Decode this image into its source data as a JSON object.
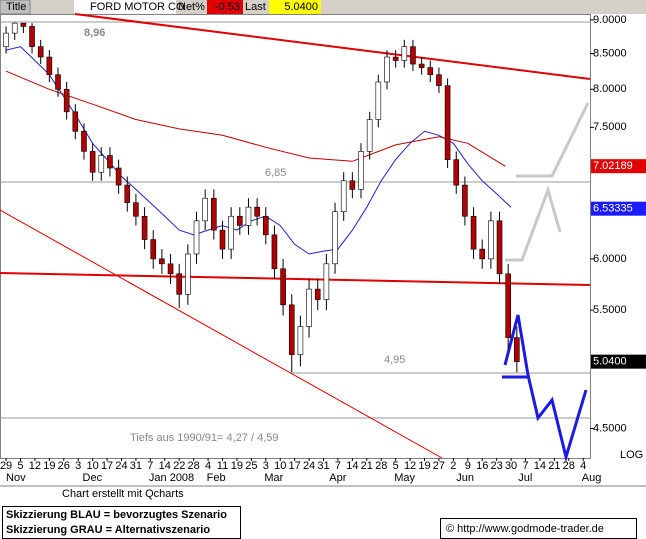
{
  "header": {
    "tab": "Title",
    "net_label": "Net%",
    "net_value": "-0.53",
    "last_label": "Last",
    "last_value": "5.0400"
  },
  "chart_data": {
    "type": "candlestick",
    "title": "FORD MOTOR CO",
    "log_scale": true,
    "scale_label": "LOG",
    "ylim": [
      4.28,
      9.09
    ],
    "yticks": [
      {
        "value": 9,
        "label": "9.0000"
      },
      {
        "value": 8.5,
        "label": "8.5000"
      },
      {
        "value": 8,
        "label": "8.0000"
      },
      {
        "value": 7.5,
        "label": "7.5000"
      },
      {
        "value": 6,
        "label": "6.0000"
      },
      {
        "value": 5.5,
        "label": "5.5000"
      },
      {
        "value": 4.5,
        "label": "4.5000"
      }
    ],
    "xlim": [
      -0.42,
      40.47
    ],
    "xticks": [
      {
        "value": 0,
        "label": "29"
      },
      {
        "value": 1,
        "label": "5"
      },
      {
        "value": 2,
        "label": "12"
      },
      {
        "value": 3,
        "label": "19"
      },
      {
        "value": 4,
        "label": "26"
      },
      {
        "value": 5,
        "label": "3"
      },
      {
        "value": 6,
        "label": "10"
      },
      {
        "value": 7,
        "label": "17"
      },
      {
        "value": 8,
        "label": "24"
      },
      {
        "value": 9,
        "label": "31"
      },
      {
        "value": 10,
        "label": "7"
      },
      {
        "value": 11,
        "label": "14"
      },
      {
        "value": 12,
        "label": "22"
      },
      {
        "value": 13,
        "label": "28"
      },
      {
        "value": 14,
        "label": "4"
      },
      {
        "value": 15,
        "label": "11"
      },
      {
        "value": 16,
        "label": "19"
      },
      {
        "value": 17,
        "label": "25"
      },
      {
        "value": 18,
        "label": "3"
      },
      {
        "value": 19,
        "label": "10"
      },
      {
        "value": 20,
        "label": "17"
      },
      {
        "value": 21,
        "label": "24"
      },
      {
        "value": 22,
        "label": "31"
      },
      {
        "value": 23,
        "label": "7"
      },
      {
        "value": 24,
        "label": "14"
      },
      {
        "value": 25,
        "label": "21"
      },
      {
        "value": 26,
        "label": "28"
      },
      {
        "value": 27,
        "label": "5"
      },
      {
        "value": 28,
        "label": "12"
      },
      {
        "value": 29,
        "label": "19"
      },
      {
        "value": 30,
        "label": "27"
      },
      {
        "value": 31,
        "label": "2"
      },
      {
        "value": 32,
        "label": "9"
      },
      {
        "value": 33,
        "label": "16"
      },
      {
        "value": 34,
        "label": "23"
      },
      {
        "value": 35,
        "label": "30"
      },
      {
        "value": 36,
        "label": "7"
      },
      {
        "value": 37,
        "label": "14"
      },
      {
        "value": 38,
        "label": "21"
      },
      {
        "value": 39,
        "label": "28"
      },
      {
        "value": 40,
        "label": "4"
      }
    ],
    "month_ticks": [
      {
        "value": 0,
        "label": "Nov"
      },
      {
        "value": 5.3,
        "label": "Dec"
      },
      {
        "value": 9.9,
        "label": "Jan 2008"
      },
      {
        "value": 13.9,
        "label": "Feb"
      },
      {
        "value": 17.9,
        "label": "Mar"
      },
      {
        "value": 22.4,
        "label": "Apr"
      },
      {
        "value": 26.9,
        "label": "May"
      },
      {
        "value": 31.2,
        "label": "Jun"
      },
      {
        "value": 35.5,
        "label": "Jul"
      },
      {
        "value": 39.9,
        "label": "Aug"
      }
    ],
    "x": [
      0,
      0.6,
      1.2,
      1.8,
      2.4,
      3,
      3.6,
      4.2,
      4.8,
      5.4,
      6,
      6.6,
      7.2,
      7.8,
      8.4,
      9,
      9.6,
      10.2,
      10.8,
      11.4,
      12,
      12.6,
      13.2,
      13.8,
      14.4,
      15,
      15.6,
      16.2,
      16.8,
      17.4,
      18,
      18.6,
      19.2,
      19.8,
      20.4,
      21,
      21.6,
      22.2,
      22.8,
      23.4,
      24,
      24.6,
      25.2,
      25.8,
      26.4,
      27,
      27.6,
      28.2,
      28.8,
      29.4,
      30,
      30.6,
      31.2,
      31.8,
      32.4,
      33,
      33.6,
      34.2,
      34.8,
      35.4
    ],
    "open": [
      8.6,
      8.8,
      8.95,
      8.9,
      8.6,
      8.45,
      8.2,
      8.0,
      7.7,
      7.45,
      7.2,
      6.95,
      7.15,
      7.0,
      6.8,
      6.6,
      6.45,
      6.2,
      6.0,
      5.95,
      5.85,
      5.65,
      6.05,
      6.4,
      6.65,
      6.3,
      6.1,
      6.45,
      6.35,
      6.55,
      6.45,
      6.25,
      5.9,
      5.55,
      5.1,
      5.35,
      5.7,
      5.6,
      5.95,
      6.5,
      6.85,
      6.75,
      7.2,
      7.6,
      8.1,
      8.45,
      8.4,
      8.6,
      8.35,
      8.3,
      8.2,
      8.05,
      7.1,
      6.8,
      6.45,
      6.1,
      6.0,
      6.4,
      5.85,
      5.25
    ],
    "high": [
      8.9,
      8.96,
      8.95,
      8.95,
      8.7,
      8.55,
      8.3,
      8.1,
      7.8,
      7.55,
      7.3,
      7.25,
      7.25,
      7.1,
      6.9,
      6.7,
      6.55,
      6.3,
      6.1,
      6.05,
      5.95,
      6.15,
      6.5,
      6.75,
      6.75,
      6.4,
      6.55,
      6.55,
      6.65,
      6.65,
      6.55,
      6.35,
      6.0,
      5.65,
      5.45,
      5.8,
      5.8,
      6.05,
      6.6,
      6.95,
      6.95,
      7.3,
      7.7,
      8.2,
      8.55,
      8.55,
      8.7,
      8.7,
      8.45,
      8.4,
      8.3,
      8.15,
      7.2,
      6.9,
      6.55,
      6.2,
      6.5,
      6.5,
      5.95,
      5.35
    ],
    "low": [
      8.5,
      8.7,
      8.8,
      8.5,
      8.35,
      8.1,
      7.9,
      7.6,
      7.35,
      7.1,
      6.85,
      6.85,
      6.9,
      6.7,
      6.5,
      6.35,
      6.1,
      5.9,
      5.85,
      5.75,
      5.52,
      5.55,
      5.95,
      6.3,
      6.2,
      6.0,
      6.0,
      6.25,
      6.25,
      6.35,
      6.15,
      5.8,
      5.45,
      4.95,
      5.0,
      5.25,
      5.5,
      5.5,
      5.85,
      6.4,
      6.65,
      6.65,
      7.1,
      7.5,
      8.0,
      8.3,
      8.3,
      8.25,
      8.2,
      8.1,
      7.95,
      7.0,
      6.7,
      6.35,
      6.0,
      5.9,
      5.9,
      5.75,
      5.15,
      4.95
    ],
    "close": [
      8.8,
      8.95,
      8.9,
      8.6,
      8.45,
      8.2,
      8.0,
      7.7,
      7.45,
      7.2,
      6.95,
      7.15,
      7.0,
      6.8,
      6.6,
      6.45,
      6.2,
      6.0,
      5.95,
      5.85,
      5.65,
      6.05,
      6.4,
      6.65,
      6.3,
      6.1,
      6.45,
      6.35,
      6.55,
      6.45,
      6.25,
      5.9,
      5.55,
      5.1,
      5.35,
      5.7,
      5.6,
      5.95,
      6.5,
      6.85,
      6.75,
      7.2,
      7.6,
      8.1,
      8.45,
      8.4,
      8.6,
      8.35,
      8.3,
      8.2,
      8.05,
      7.1,
      6.8,
      6.45,
      6.1,
      6.0,
      6.4,
      5.85,
      5.25,
      5.04
    ],
    "up_color": "#ffffff",
    "down_color": "#b00000",
    "moving_averages": [
      {
        "color": "#2222cc",
        "x": [
          0,
          1,
          2,
          3,
          4,
          5,
          6,
          7,
          8,
          9,
          10,
          11,
          12,
          13,
          14,
          15,
          16,
          17,
          18,
          19,
          20,
          21,
          22,
          23,
          24,
          25,
          26,
          27,
          28,
          29,
          30,
          31,
          32,
          33,
          34,
          35
        ],
        "values": [
          8.55,
          8.6,
          8.4,
          8.2,
          7.9,
          7.6,
          7.3,
          7.1,
          6.9,
          6.75,
          6.6,
          6.45,
          6.3,
          6.25,
          6.3,
          6.35,
          6.3,
          6.4,
          6.45,
          6.35,
          6.15,
          6.05,
          6.08,
          6.1,
          6.3,
          6.55,
          6.85,
          7.1,
          7.3,
          7.45,
          7.4,
          7.3,
          7.05,
          6.85,
          6.7,
          6.55
        ]
      },
      {
        "color": "#c00000",
        "x": [
          0,
          3,
          6,
          9,
          12,
          15,
          18,
          21,
          24,
          27,
          30,
          32,
          34.6
        ],
        "values": [
          8.25,
          8.0,
          7.8,
          7.6,
          7.48,
          7.4,
          7.25,
          7.12,
          7.08,
          7.28,
          7.38,
          7.3,
          7.02
        ]
      }
    ],
    "price_boxes": [
      {
        "value": 7.02189,
        "label": "7.02189",
        "color": "#e00000"
      },
      {
        "value": 6.53335,
        "label": "6.53335",
        "color": "#1a1aff"
      },
      {
        "value": 5.04,
        "label": "5.0400",
        "color": "#000000"
      }
    ],
    "annotations": [
      "8,96",
      "6,85",
      "4,95",
      "Tiefs aus 1990/91= 4,27 / 4,59"
    ]
  },
  "footer": {
    "credit": "Chart erstellt mit Qcharts",
    "legend_lines": [
      "Skizzierung BLAU = bevorzugtes Szenario",
      "Skizzierung GRAU = Alternativszenario"
    ],
    "website": "© http://www.godmode-trader.de"
  }
}
